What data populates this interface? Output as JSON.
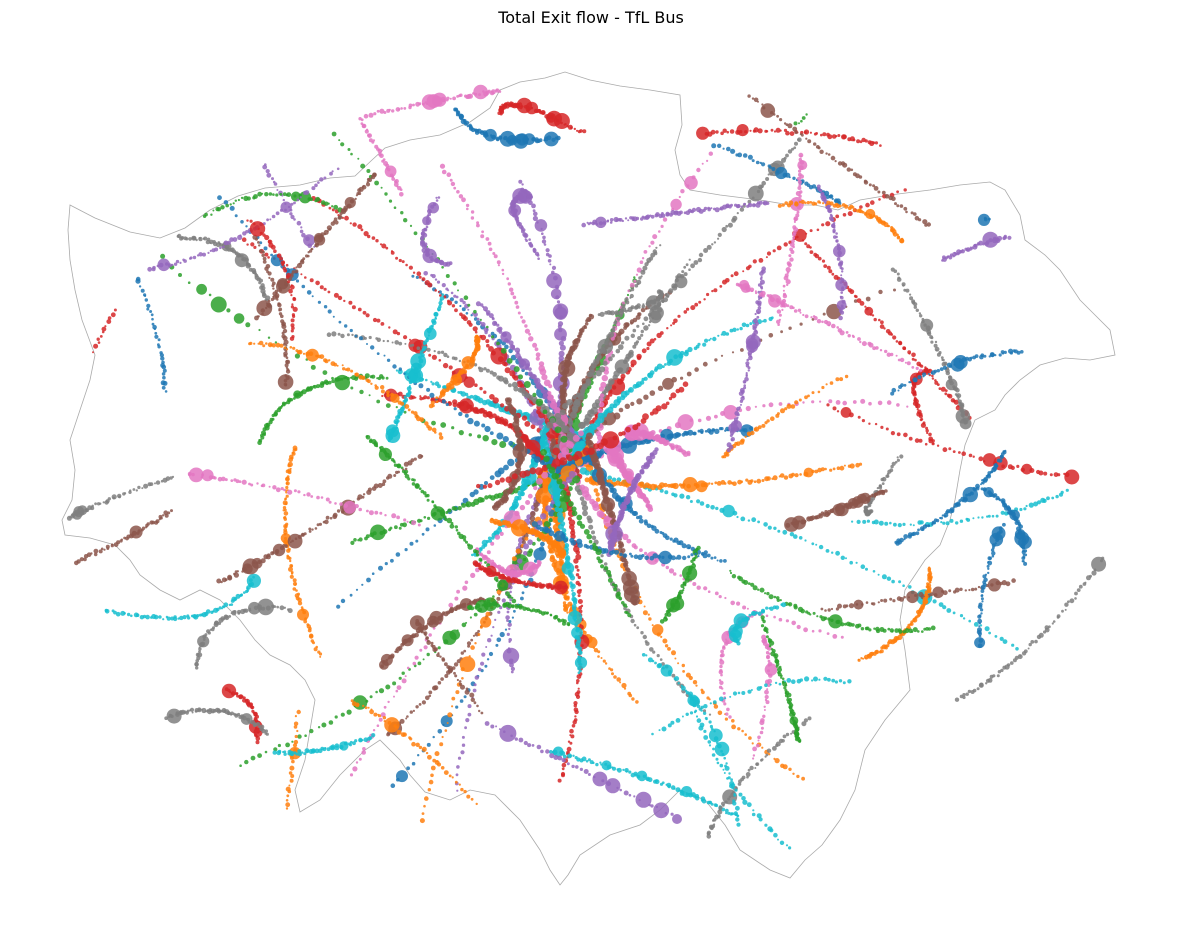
{
  "title": "Total Exit flow - TfL Bus",
  "chart_data": {
    "type": "scatter",
    "title": "Total Exit flow - TfL Bus",
    "subject": "TfL Bus",
    "metric": "Total Exit flow",
    "axes_visible": false,
    "grid": false,
    "legend": "none",
    "boundary_color": "#aaaaaa",
    "series_colors": [
      "#1f77b4",
      "#ff7f0e",
      "#2ca02c",
      "#d62728",
      "#9467bd",
      "#8c564b",
      "#e377c2",
      "#7f7f7f",
      "#17becf"
    ]
  }
}
